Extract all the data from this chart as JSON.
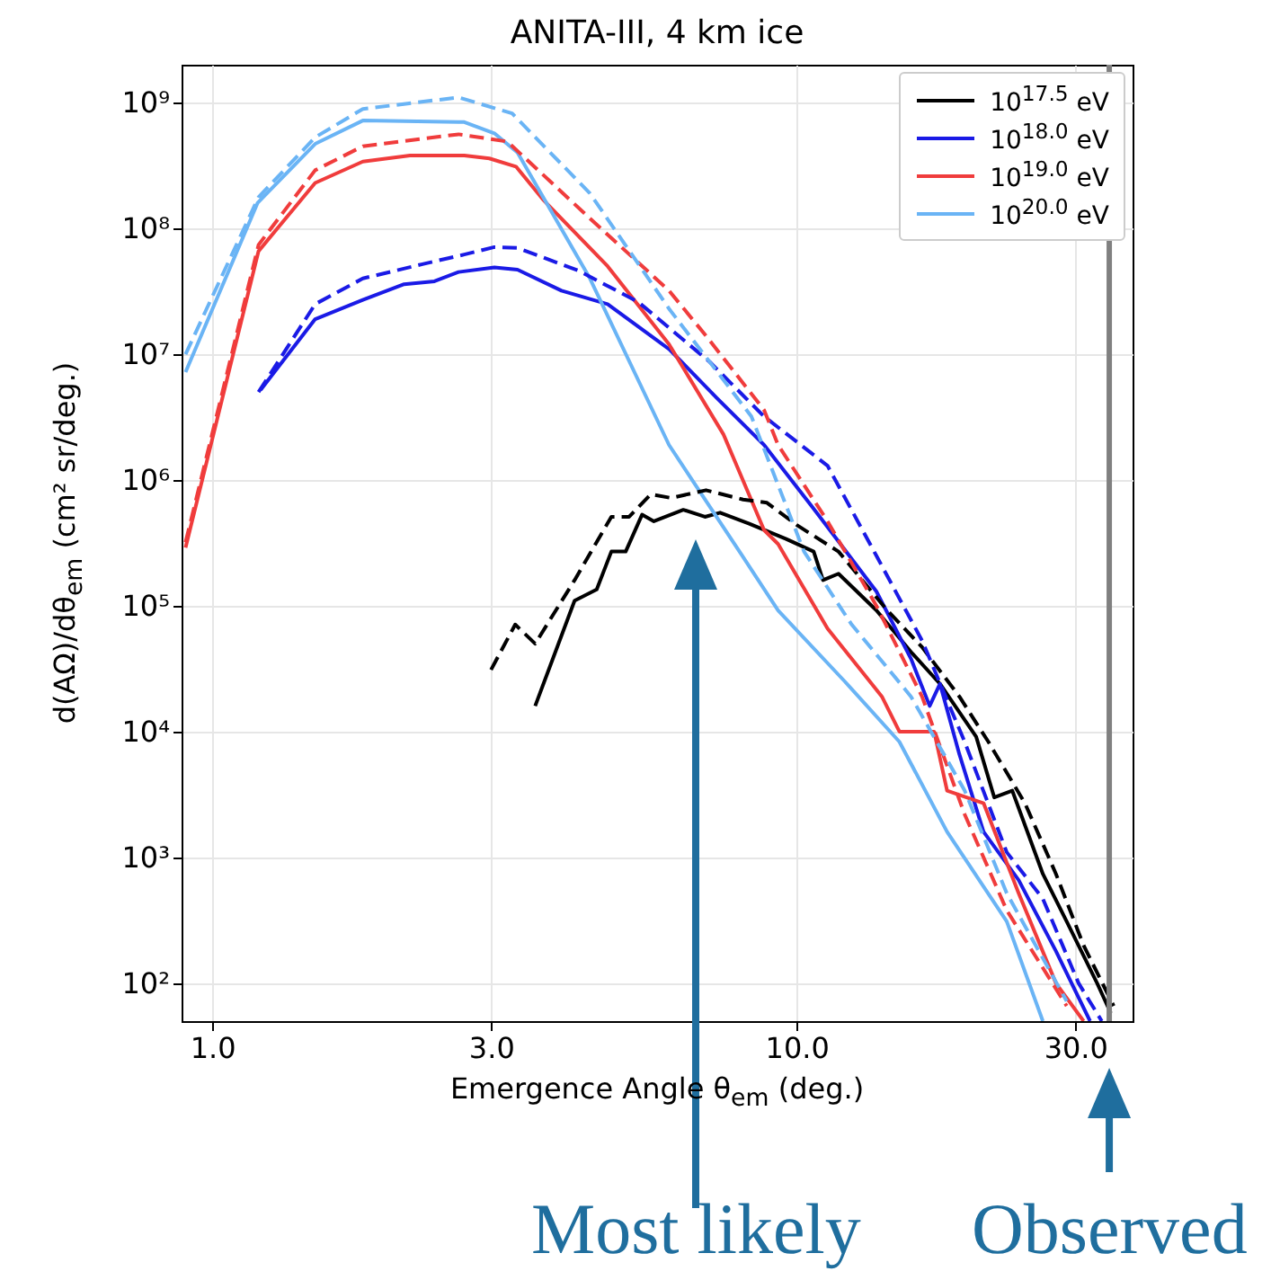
{
  "chart_data": {
    "type": "line",
    "title": "ANITA-III, 4 km ice",
    "xlabel": "Emergence Angle θ$_{em}$ (deg.)",
    "ylabel": "d(AΩ)/dθ$_{em}$ (cm² sr/deg.)",
    "log": "xy",
    "grid": true,
    "legend": "top right",
    "xlim": [
      0.886,
      37.6
    ],
    "ylim": [
      50,
      2000000000
    ],
    "xticks": [
      {
        "value": 1,
        "label": "1.0"
      },
      {
        "value": 3,
        "label": "3.0"
      },
      {
        "value": 10,
        "label": "10.0"
      },
      {
        "value": 30,
        "label": "30.0"
      }
    ],
    "yticks": [
      {
        "value": 100,
        "label": "10²"
      },
      {
        "value": 1000,
        "label": "10³"
      },
      {
        "value": 10000,
        "label": "10⁴"
      },
      {
        "value": 100000,
        "label": "10⁵"
      },
      {
        "value": 1000000,
        "label": "10⁶"
      },
      {
        "value": 10000000,
        "label": "10⁷"
      },
      {
        "value": 100000000,
        "label": "10⁸"
      },
      {
        "value": 1000000000,
        "label": "10⁹"
      }
    ],
    "series": [
      {
        "name": "10$^{17.5}$ eV",
        "color": "#000000",
        "line_style": "solid",
        "x": [
          3.57,
          4.17,
          4.55,
          4.82,
          5.1,
          5.44,
          5.7,
          6.4,
          6.97,
          7.4,
          8.3,
          9.6,
          10.7,
          11.1,
          11.8,
          13.7,
          15.7,
          17.6,
          20.3,
          21.8,
          23.4,
          26.4,
          29,
          32.7,
          34.5
        ],
        "values": [
          16000,
          110000,
          135000,
          270000,
          270000,
          530000,
          470000,
          580000,
          510000,
          550000,
          450000,
          340000,
          270000,
          160000,
          180000,
          92000,
          43000,
          24000,
          9100,
          3000,
          3400,
          740,
          310,
          100,
          58
        ]
      },
      {
        "name": "10$^{18.0}$ eV",
        "color": "#1a1ae6",
        "line_style": "solid",
        "x": [
          1.21,
          1.5,
          1.81,
          2.13,
          2.4,
          2.64,
          3.04,
          3.33,
          3.96,
          4.75,
          6.05,
          7.3,
          8.8,
          10.7,
          13.7,
          15.7,
          16.9,
          17.6,
          19,
          20.9,
          24,
          27.8,
          31.8
        ],
        "values": [
          5200000,
          19000000,
          27000000,
          36000000,
          38000000,
          45000000,
          49000000,
          47000000,
          32000000,
          25000000,
          11000000,
          4500000,
          1900000,
          590000,
          130000,
          38000,
          16000,
          24000,
          6600,
          1600,
          660,
          180,
          50
        ]
      },
      {
        "name": "10$^{19.0}$ eV",
        "color": "#f03c3c",
        "line_style": "solid",
        "x": [
          0.9,
          1.2,
          1.5,
          1.81,
          2.18,
          2.7,
          2.98,
          3.31,
          3.68,
          4.75,
          6.05,
          7.5,
          8.8,
          9.3,
          11.3,
          14,
          15,
          17.2,
          18.1,
          20.9,
          24,
          27.8,
          31
        ],
        "values": [
          290000,
          66000000,
          230000000,
          340000000,
          380000000,
          380000000,
          360000000,
          310000000,
          170000000,
          50000000,
          12000000,
          2300000,
          400000,
          310000,
          66000,
          19000,
          10000,
          10000,
          3400,
          2700,
          520,
          100,
          50
        ]
      },
      {
        "name": "10$^{20.0}$ eV",
        "color": "#6ab4f5",
        "line_style": "solid",
        "x": [
          0.9,
          1.196,
          1.5,
          1.81,
          2.7,
          3.04,
          3.33,
          4.43,
          6.05,
          8.03,
          9.3,
          12.1,
          15,
          18.1,
          22.9,
          26.4
        ],
        "values": [
          7200000,
          160000000,
          470000000,
          720000000,
          700000000,
          570000000,
          400000000,
          40000000,
          1900000,
          260000,
          92000,
          25000,
          8300,
          1600,
          310,
          50
        ]
      },
      {
        "color": "#000000",
        "line_style": "dashed",
        "x": [
          3,
          3.3,
          3.57,
          4.17,
          4.82,
          5.17,
          5.63,
          6.1,
          7,
          8.1,
          8.9,
          10,
          11.8,
          14.3,
          16.4,
          19,
          21.3,
          24.6,
          27.8,
          31,
          34.9
        ],
        "values": [
          31000,
          71000,
          50000,
          160000,
          510000,
          510000,
          770000,
          720000,
          830000,
          700000,
          660000,
          440000,
          270000,
          92000,
          47000,
          19000,
          8300,
          2700,
          740,
          200,
          66
        ]
      },
      {
        "color": "#1a1ae6",
        "line_style": "dashed",
        "x": [
          1.2,
          1.5,
          1.81,
          2.29,
          2.7,
          3.04,
          3.33,
          4.24,
          5.36,
          7.1,
          8.8,
          11.3,
          13.7,
          16.4,
          19.4,
          22.9,
          26.4,
          30.4,
          33.3
        ],
        "values": [
          5000000,
          25000000,
          40000000,
          52000000,
          62000000,
          71000000,
          70000000,
          46000000,
          26000000,
          8700000,
          3200000,
          1300000,
          250000,
          53000,
          8300,
          1100,
          470,
          100,
          50
        ]
      },
      {
        "color": "#f03c3c",
        "line_style": "dashed",
        "x": [
          0.9,
          1.2,
          1.5,
          1.81,
          2.64,
          3.2,
          4.43,
          6.05,
          7,
          8.8,
          9.3,
          11.3,
          13.7,
          16.4,
          19.4,
          22.9,
          29
        ],
        "values": [
          320000,
          74000000,
          290000000,
          450000000,
          560000000,
          490000000,
          120000000,
          32000000,
          14000000,
          3600000,
          1900000,
          470000,
          100000,
          19000,
          2200,
          380,
          66
        ]
      },
      {
        "color": "#6ab4f5",
        "line_style": "dashed",
        "x": [
          0.9,
          1.2,
          1.5,
          1.81,
          2.64,
          3.26,
          4.43,
          6.05,
          8.37,
          10.3,
          12.4,
          15.7,
          19.4,
          22.9,
          29
        ],
        "values": [
          10000000,
          177000000,
          530000000,
          890000000,
          1100000000,
          820000000,
          190000000,
          23000000,
          3200000,
          270000,
          72000,
          19000,
          3400,
          520,
          72
        ]
      }
    ],
    "ref_lines": [
      {
        "axis": "x",
        "value": 34.3,
        "color": "#808080",
        "label": "Observed"
      }
    ],
    "annotations": [
      "Most likely"
    ]
  }
}
